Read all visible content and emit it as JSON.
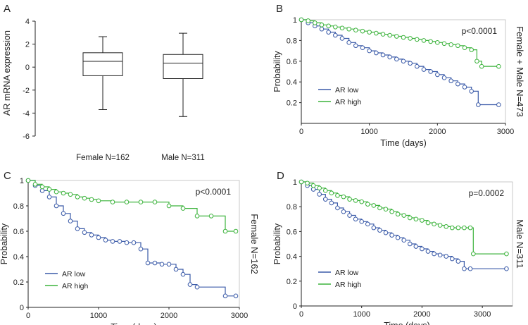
{
  "figure": {
    "panels": [
      "A",
      "B",
      "C",
      "D"
    ]
  },
  "colors": {
    "low": "#3a5aa8",
    "high": "#3cb33c",
    "axis": "#222222"
  },
  "chart_data": [
    {
      "id": "A",
      "type": "box",
      "ylabel": "AR mRNA expression",
      "ylim": [
        -6,
        4
      ],
      "yticks": [
        -6,
        -4,
        -2,
        0,
        2,
        4
      ],
      "categories": [
        "Female N=162",
        "Male N=311"
      ],
      "boxes": [
        {
          "name": "Female N=162",
          "min": -3.7,
          "q1": -0.75,
          "median": 0.5,
          "q3": 1.25,
          "max": 2.65
        },
        {
          "name": "Male N=311",
          "min": -4.3,
          "q1": -1.0,
          "median": 0.35,
          "q3": 1.1,
          "max": 2.95
        }
      ]
    },
    {
      "id": "B",
      "type": "line",
      "subtype": "kaplan-meier",
      "xlabel": "Time (days)",
      "ylabel": "Probability",
      "side_label": "Female + Male N=473",
      "pvalue": "p<0.0001",
      "xlim": [
        0,
        3000
      ],
      "ylim": [
        0,
        1
      ],
      "xticks": [
        0,
        1000,
        2000,
        3000
      ],
      "yticks": [
        0.2,
        0.4,
        0.6,
        0.8,
        1
      ],
      "legend": [
        "AR low",
        "AR high"
      ],
      "series": [
        {
          "name": "AR low",
          "color_key": "low",
          "x": [
            0,
            100,
            200,
            300,
            400,
            500,
            600,
            700,
            800,
            900,
            1000,
            1100,
            1200,
            1300,
            1400,
            1500,
            1600,
            1700,
            1800,
            1900,
            2000,
            2100,
            2200,
            2300,
            2400,
            2500,
            2600,
            2900
          ],
          "y": [
            1.0,
            0.97,
            0.94,
            0.91,
            0.88,
            0.85,
            0.82,
            0.78,
            0.75,
            0.73,
            0.7,
            0.68,
            0.66,
            0.64,
            0.62,
            0.6,
            0.58,
            0.55,
            0.52,
            0.5,
            0.47,
            0.44,
            0.41,
            0.38,
            0.35,
            0.31,
            0.18,
            0.18
          ]
        },
        {
          "name": "AR high",
          "color_key": "high",
          "x": [
            0,
            100,
            200,
            300,
            400,
            500,
            600,
            700,
            800,
            900,
            1000,
            1100,
            1200,
            1300,
            1400,
            1500,
            1600,
            1700,
            1800,
            1900,
            2000,
            2100,
            2200,
            2300,
            2400,
            2500,
            2580,
            2650,
            2900
          ],
          "y": [
            1.0,
            0.99,
            0.97,
            0.95,
            0.94,
            0.93,
            0.92,
            0.91,
            0.9,
            0.89,
            0.88,
            0.87,
            0.86,
            0.85,
            0.84,
            0.83,
            0.82,
            0.81,
            0.8,
            0.79,
            0.78,
            0.77,
            0.76,
            0.75,
            0.73,
            0.71,
            0.6,
            0.55,
            0.55
          ]
        }
      ]
    },
    {
      "id": "C",
      "type": "line",
      "subtype": "kaplan-meier",
      "xlabel": "Time (days)",
      "ylabel": "Probability",
      "side_label": "Female N=162",
      "pvalue": "p<0.0001",
      "xlim": [
        0,
        3000
      ],
      "ylim": [
        0,
        1
      ],
      "xticks": [
        0,
        1000,
        2000,
        3000
      ],
      "yticks": [
        0,
        0.2,
        0.4,
        0.6,
        0.8,
        1
      ],
      "legend": [
        "AR low",
        "AR high"
      ],
      "series": [
        {
          "name": "AR low",
          "color_key": "low",
          "x": [
            0,
            100,
            200,
            300,
            400,
            500,
            600,
            700,
            800,
            900,
            1000,
            1100,
            1200,
            1300,
            1400,
            1500,
            1600,
            1700,
            1800,
            1900,
            2000,
            2100,
            2200,
            2300,
            2400,
            2800,
            2950
          ],
          "y": [
            1.0,
            0.96,
            0.92,
            0.87,
            0.8,
            0.74,
            0.68,
            0.62,
            0.59,
            0.57,
            0.55,
            0.53,
            0.52,
            0.52,
            0.51,
            0.51,
            0.46,
            0.35,
            0.35,
            0.34,
            0.34,
            0.3,
            0.26,
            0.18,
            0.16,
            0.09,
            0.09
          ]
        },
        {
          "name": "AR high",
          "color_key": "high",
          "x": [
            0,
            100,
            200,
            300,
            400,
            500,
            600,
            700,
            800,
            900,
            1000,
            1200,
            1400,
            1600,
            1800,
            2000,
            2200,
            2400,
            2600,
            2800,
            2950
          ],
          "y": [
            1.0,
            0.97,
            0.95,
            0.93,
            0.91,
            0.9,
            0.89,
            0.87,
            0.86,
            0.85,
            0.84,
            0.83,
            0.83,
            0.83,
            0.83,
            0.8,
            0.78,
            0.72,
            0.72,
            0.6,
            0.6
          ]
        }
      ]
    },
    {
      "id": "D",
      "type": "line",
      "subtype": "kaplan-meier",
      "xlabel": "Time (days)",
      "ylabel": "Probability",
      "side_label": "Male N=311",
      "pvalue": "p=0.0002",
      "xlim": [
        0,
        3500
      ],
      "ylim": [
        0,
        1
      ],
      "xticks": [
        0,
        1000,
        2000,
        3000
      ],
      "yticks": [
        0,
        0.2,
        0.4,
        0.6,
        0.8,
        1
      ],
      "legend": [
        "AR low",
        "AR high"
      ],
      "series": [
        {
          "name": "AR low",
          "color_key": "low",
          "x": [
            0,
            100,
            200,
            300,
            400,
            500,
            600,
            700,
            800,
            900,
            1000,
            1100,
            1200,
            1300,
            1400,
            1500,
            1600,
            1700,
            1800,
            1900,
            2000,
            2100,
            2200,
            2300,
            2400,
            2500,
            2600,
            2700,
            2800,
            3400
          ],
          "y": [
            1.0,
            0.97,
            0.94,
            0.9,
            0.86,
            0.83,
            0.79,
            0.76,
            0.73,
            0.7,
            0.68,
            0.66,
            0.63,
            0.61,
            0.59,
            0.57,
            0.55,
            0.53,
            0.5,
            0.48,
            0.46,
            0.44,
            0.42,
            0.41,
            0.4,
            0.38,
            0.36,
            0.3,
            0.3,
            0.3
          ]
        },
        {
          "name": "AR high",
          "color_key": "high",
          "x": [
            0,
            100,
            200,
            300,
            400,
            500,
            600,
            700,
            800,
            900,
            1000,
            1100,
            1200,
            1300,
            1400,
            1500,
            1600,
            1700,
            1800,
            1900,
            2000,
            2100,
            2200,
            2300,
            2400,
            2500,
            2600,
            2700,
            2800,
            2850,
            3400
          ],
          "y": [
            1.0,
            0.99,
            0.97,
            0.95,
            0.93,
            0.91,
            0.89,
            0.88,
            0.86,
            0.85,
            0.84,
            0.82,
            0.81,
            0.79,
            0.78,
            0.76,
            0.74,
            0.73,
            0.71,
            0.7,
            0.69,
            0.67,
            0.66,
            0.65,
            0.64,
            0.63,
            0.63,
            0.63,
            0.63,
            0.42,
            0.42
          ]
        }
      ]
    }
  ]
}
